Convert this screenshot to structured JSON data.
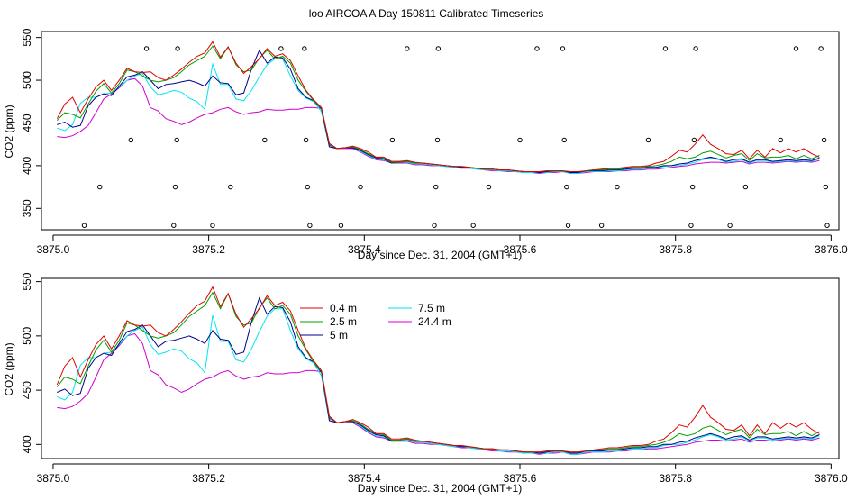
{
  "title": "loo AIRCOA A  Day 150811  Calibrated Timeseries",
  "colors": {
    "0.4 m": "#e00000",
    "2.5 m": "#00a000",
    "5 m": "#00008b",
    "7.5 m": "#00e5ee",
    "24.4 m": "#d000d0"
  },
  "chart_data": [
    {
      "type": "line",
      "title": "",
      "xlabel": "Day since Dec. 31, 2004 (GMT+1)",
      "ylabel": "CO2 (ppm)",
      "xlim": [
        3874.985,
        3876.01
      ],
      "ylim": [
        325,
        557
      ],
      "xticks": [
        3875.0,
        3875.2,
        3875.4,
        3875.6,
        3875.8,
        3876.0
      ],
      "xtick_labels": [
        "3875.0",
        "3875.2",
        "3875.4",
        "3875.6",
        "3875.8",
        "3876.0"
      ],
      "yticks": [
        350,
        400,
        450,
        500,
        550
      ],
      "ytick_labels": [
        "350",
        "400",
        "450",
        "500",
        "550"
      ],
      "grid": false,
      "legend": "none",
      "x": [
        3875.005,
        3875.015,
        3875.025,
        3875.035,
        3875.045,
        3875.055,
        3875.065,
        3875.075,
        3875.085,
        3875.095,
        3875.105,
        3875.115,
        3875.125,
        3875.135,
        3875.145,
        3875.155,
        3875.165,
        3875.175,
        3875.185,
        3875.195,
        3875.205,
        3875.215,
        3875.225,
        3875.235,
        3875.245,
        3875.255,
        3875.265,
        3875.275,
        3875.285,
        3875.295,
        3875.305,
        3875.315,
        3875.325,
        3875.335,
        3875.345,
        3875.355,
        3875.365,
        3875.375,
        3875.385,
        3875.395,
        3875.405,
        3875.415,
        3875.425,
        3875.435,
        3875.445,
        3875.455,
        3875.465,
        3875.475,
        3875.485,
        3875.495,
        3875.505,
        3875.515,
        3875.525,
        3875.535,
        3875.545,
        3875.555,
        3875.565,
        3875.575,
        3875.585,
        3875.595,
        3875.605,
        3875.615,
        3875.625,
        3875.635,
        3875.645,
        3875.655,
        3875.665,
        3875.675,
        3875.685,
        3875.695,
        3875.705,
        3875.715,
        3875.725,
        3875.735,
        3875.745,
        3875.755,
        3875.765,
        3875.775,
        3875.785,
        3875.795,
        3875.805,
        3875.815,
        3875.825,
        3875.835,
        3875.845,
        3875.855,
        3875.865,
        3875.875,
        3875.885,
        3875.895,
        3875.905,
        3875.915,
        3875.925,
        3875.935,
        3875.945,
        3875.955,
        3875.965,
        3875.975,
        3875.985
      ],
      "series": [
        {
          "name": "0.4 m",
          "values": [
            455,
            472,
            480,
            462,
            478,
            492,
            500,
            488,
            500,
            514,
            510,
            509,
            510,
            503,
            500,
            506,
            513,
            521,
            528,
            532,
            545,
            527,
            539,
            520,
            508,
            516,
            525,
            537,
            528,
            531,
            523,
            505,
            488,
            477,
            468,
            426,
            420,
            421,
            423,
            420,
            416,
            410,
            410,
            405,
            405,
            406,
            404,
            403,
            402,
            401,
            400,
            399,
            399,
            398,
            397,
            396,
            396,
            395,
            395,
            394,
            393,
            393,
            393,
            394,
            394,
            394,
            393,
            393,
            394,
            395,
            396,
            397,
            397,
            398,
            399,
            399,
            400,
            403,
            405,
            411,
            418,
            416,
            425,
            436,
            425,
            420,
            414,
            413,
            418,
            408,
            418,
            410,
            420,
            415,
            420,
            416,
            420,
            414,
            410
          ]
        },
        {
          "name": "2.5 m",
          "values": [
            453,
            462,
            460,
            456,
            472,
            487,
            496,
            485,
            496,
            512,
            510,
            505,
            500,
            498,
            500,
            503,
            510,
            518,
            523,
            528,
            540,
            525,
            539,
            518,
            510,
            512,
            526,
            535,
            525,
            528,
            520,
            500,
            487,
            476,
            467,
            425,
            420,
            421,
            422,
            419,
            414,
            410,
            409,
            404,
            404,
            405,
            403,
            403,
            402,
            401,
            400,
            399,
            399,
            398,
            397,
            396,
            396,
            395,
            395,
            394,
            393,
            393,
            393,
            394,
            394,
            394,
            393,
            393,
            394,
            395,
            395,
            396,
            396,
            397,
            398,
            398,
            399,
            400,
            402,
            405,
            410,
            408,
            410,
            415,
            417,
            413,
            409,
            412,
            414,
            406,
            414,
            409,
            410,
            410,
            412,
            408,
            412,
            408,
            412
          ]
        },
        {
          "name": "5 m",
          "values": [
            448,
            451,
            445,
            447,
            470,
            480,
            484,
            482,
            493,
            504,
            506,
            510,
            500,
            490,
            495,
            496,
            498,
            500,
            497,
            493,
            505,
            497,
            496,
            483,
            485,
            513,
            535,
            520,
            527,
            526,
            513,
            490,
            480,
            476,
            466,
            422,
            420,
            421,
            421,
            418,
            413,
            409,
            408,
            403,
            404,
            405,
            403,
            403,
            402,
            401,
            400,
            399,
            398,
            398,
            397,
            396,
            396,
            395,
            395,
            394,
            393,
            393,
            392,
            393,
            394,
            394,
            392,
            392,
            394,
            394,
            394,
            395,
            395,
            396,
            397,
            397,
            398,
            398,
            400,
            400,
            402,
            403,
            406,
            408,
            410,
            408,
            405,
            407,
            408,
            404,
            407,
            407,
            405,
            406,
            407,
            406,
            407,
            406,
            409
          ]
        },
        {
          "name": "7.5 m",
          "values": [
            444,
            441,
            448,
            473,
            480,
            480,
            484,
            485,
            492,
            500,
            505,
            508,
            492,
            483,
            485,
            488,
            486,
            479,
            475,
            466,
            519,
            495,
            495,
            478,
            476,
            488,
            504,
            518,
            525,
            525,
            505,
            488,
            479,
            475,
            463,
            422,
            420,
            421,
            421,
            417,
            412,
            408,
            407,
            403,
            404,
            404,
            402,
            402,
            401,
            400,
            399,
            398,
            398,
            397,
            396,
            395,
            395,
            394,
            394,
            393,
            392,
            392,
            392,
            392,
            393,
            393,
            391,
            391,
            393,
            393,
            393,
            394,
            394,
            395,
            396,
            396,
            397,
            397,
            399,
            400,
            400,
            402,
            404,
            407,
            409,
            407,
            404,
            405,
            407,
            403,
            406,
            406,
            404,
            405,
            406,
            405,
            406,
            405,
            408
          ]
        },
        {
          "name": "24.4 m",
          "values": [
            434,
            433,
            435,
            440,
            447,
            462,
            478,
            484,
            491,
            500,
            502,
            493,
            468,
            464,
            455,
            452,
            448,
            451,
            456,
            460,
            462,
            466,
            468,
            463,
            460,
            462,
            463,
            466,
            465,
            465,
            466,
            466,
            468,
            468,
            467,
            424,
            420,
            420,
            420,
            416,
            411,
            407,
            406,
            403,
            403,
            403,
            401,
            401,
            400,
            400,
            399,
            398,
            397,
            397,
            396,
            395,
            394,
            394,
            393,
            393,
            392,
            392,
            391,
            392,
            392,
            393,
            391,
            391,
            392,
            393,
            393,
            393,
            394,
            394,
            395,
            395,
            396,
            396,
            397,
            398,
            399,
            400,
            402,
            403,
            404,
            404,
            403,
            404,
            405,
            402,
            404,
            404,
            403,
            404,
            405,
            404,
            405,
            404,
            406
          ]
        }
      ],
      "points": {
        "x": [
          3875.04,
          3875.06,
          3875.1,
          3875.12,
          3875.155,
          3875.157,
          3875.159,
          3875.16,
          3875.205,
          3875.228,
          3875.272,
          3875.293,
          3875.323,
          3875.325,
          3875.327,
          3875.33,
          3875.37,
          3875.395,
          3875.436,
          3875.455,
          3875.49,
          3875.492,
          3875.494,
          3875.495,
          3875.54,
          3875.56,
          3875.6,
          3875.622,
          3875.655,
          3875.657,
          3875.66,
          3875.662,
          3875.705,
          3875.725,
          3875.765,
          3875.787,
          3875.82,
          3875.822,
          3875.824,
          3875.826,
          3875.87,
          3875.89,
          3875.935,
          3875.955,
          3875.987,
          3875.991,
          3875.993,
          3875.995
        ],
        "y": [
          330,
          375,
          430,
          537,
          330,
          375,
          430,
          537,
          330,
          375,
          430,
          537,
          537,
          430,
          375,
          330,
          330,
          375,
          430,
          537,
          330,
          375,
          430,
          537,
          330,
          375,
          430,
          537,
          537,
          430,
          375,
          330,
          330,
          375,
          430,
          537,
          330,
          375,
          430,
          537,
          330,
          375,
          430,
          537,
          537,
          430,
          375,
          330
        ]
      }
    },
    {
      "type": "line",
      "title": "",
      "xlabel": "Day since Dec. 31, 2004 (GMT+1)",
      "ylabel": "CO2 (ppm)",
      "xlim": [
        3874.985,
        3876.01
      ],
      "ylim": [
        387,
        553
      ],
      "xticks": [
        3875.0,
        3875.2,
        3875.4,
        3875.6,
        3875.8,
        3876.0
      ],
      "xtick_labels": [
        "3875.0",
        "3875.2",
        "3875.4",
        "3875.6",
        "3875.8",
        "3876.0"
      ],
      "yticks": [
        400,
        450,
        500,
        550
      ],
      "ytick_labels": [
        "400",
        "450",
        "500",
        "550"
      ],
      "grid": false,
      "legend": "top-left",
      "legend_entries": [
        "0.4 m",
        "2.5 m",
        "5 m",
        "7.5 m",
        "24.4 m"
      ],
      "same_series_as_panel": 0
    }
  ]
}
